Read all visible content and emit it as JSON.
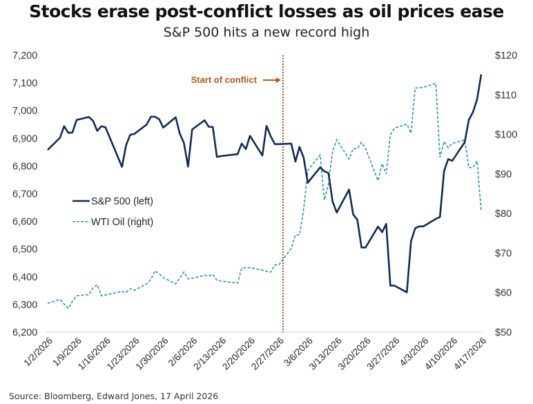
{
  "header": {
    "title": "Stocks erase post-conflict losses as oil prices ease",
    "subtitle": "S&P 500 hits a new record high"
  },
  "footer": {
    "source": "Source: Bloomberg, Edward Jones, 17 April 2026"
  },
  "colors": {
    "sp500": "#0f2a52",
    "oil": "#2a8fae",
    "conflict_line": "#a0522d",
    "annotation": "#b5541c"
  },
  "chart_data": {
    "type": "line",
    "title": "Stocks erase post-conflict losses as oil prices ease",
    "subtitle": "S&P 500 hits a new record high",
    "xlabel": "",
    "ylabel_left": "",
    "ylabel_right": "",
    "x_range": [
      "2026-01-02",
      "2026-04-17"
    ],
    "x_tick_labels": [
      "1/2/2026",
      "1/9/2026",
      "1/16/2026",
      "1/23/2026",
      "1/30/2026",
      "2/6/2026",
      "2/13/2026",
      "2/20/2026",
      "2/27/2026",
      "3/6/2026",
      "3/13/2026",
      "3/20/2026",
      "3/27/2026",
      "4/3/2026",
      "4/10/2026",
      "4/17/2026"
    ],
    "y_left": {
      "min": 6200,
      "max": 7200,
      "ticks": [
        "6,200",
        "6,300",
        "6,400",
        "6,500",
        "6,600",
        "6,700",
        "6,800",
        "6,900",
        "7,000",
        "7,100",
        "7,200"
      ],
      "tick_values": [
        6200,
        6300,
        6400,
        6500,
        6600,
        6700,
        6800,
        6900,
        7000,
        7100,
        7200
      ]
    },
    "y_right": {
      "min": 50,
      "max": 120,
      "ticks": [
        "$50",
        "$60",
        "$70",
        "$80",
        "$90",
        "$100",
        "$110",
        "$120"
      ],
      "tick_values": [
        50,
        60,
        70,
        80,
        90,
        100,
        110,
        120
      ]
    },
    "grid": false,
    "legend": {
      "placement": "middle-left",
      "entries": [
        {
          "label": "S&P 500 (left)",
          "style": "solid"
        },
        {
          "label": "WTI Oil (right)",
          "style": "dashed"
        }
      ]
    },
    "annotations": [
      {
        "text": "Start of conflict",
        "x": "2026-02-28",
        "style": "vertical dotted line with arrow"
      }
    ],
    "series": [
      {
        "name": "S&P 500 (left)",
        "axis": "left",
        "points": [
          [
            "2026-01-02",
            6858
          ],
          [
            "2026-01-05",
            6902
          ],
          [
            "2026-01-06",
            6944
          ],
          [
            "2026-01-07",
            6920
          ],
          [
            "2026-01-08",
            6921
          ],
          [
            "2026-01-09",
            6966
          ],
          [
            "2026-01-12",
            6977
          ],
          [
            "2026-01-13",
            6963
          ],
          [
            "2026-01-14",
            6927
          ],
          [
            "2026-01-15",
            6944
          ],
          [
            "2026-01-16",
            6940
          ],
          [
            "2026-01-20",
            6797
          ],
          [
            "2026-01-21",
            6875
          ],
          [
            "2026-01-22",
            6913
          ],
          [
            "2026-01-23",
            6916
          ],
          [
            "2026-01-26",
            6950
          ],
          [
            "2026-01-27",
            6978
          ],
          [
            "2026-01-28",
            6978
          ],
          [
            "2026-01-29",
            6969
          ],
          [
            "2026-01-30",
            6939
          ],
          [
            "2026-02-02",
            6976
          ],
          [
            "2026-02-03",
            6917
          ],
          [
            "2026-02-04",
            6883
          ],
          [
            "2026-02-05",
            6798
          ],
          [
            "2026-02-06",
            6932
          ],
          [
            "2026-02-09",
            6965
          ],
          [
            "2026-02-10",
            6942
          ],
          [
            "2026-02-11",
            6941
          ],
          [
            "2026-02-12",
            6833
          ],
          [
            "2026-02-13",
            6836
          ],
          [
            "2026-02-17",
            6843
          ],
          [
            "2026-02-18",
            6881
          ],
          [
            "2026-02-19",
            6861
          ],
          [
            "2026-02-20",
            6909
          ],
          [
            "2026-02-23",
            6838
          ],
          [
            "2026-02-24",
            6945
          ],
          [
            "2026-02-25",
            6908
          ],
          [
            "2026-02-26",
            6879
          ],
          [
            "2026-02-27",
            6879
          ],
          [
            "2026-03-02",
            6881
          ],
          [
            "2026-03-03",
            6816
          ],
          [
            "2026-03-04",
            6869
          ],
          [
            "2026-03-05",
            6830
          ],
          [
            "2026-03-06",
            6740
          ],
          [
            "2026-03-09",
            6795
          ],
          [
            "2026-03-10",
            6781
          ],
          [
            "2026-03-11",
            6775
          ],
          [
            "2026-03-12",
            6672
          ],
          [
            "2026-03-13",
            6632
          ],
          [
            "2026-03-16",
            6715
          ],
          [
            "2026-03-17",
            6625
          ],
          [
            "2026-03-18",
            6606
          ],
          [
            "2026-03-19",
            6506
          ],
          [
            "2026-03-20",
            6506
          ],
          [
            "2026-03-23",
            6581
          ],
          [
            "2026-03-24",
            6561
          ],
          [
            "2026-03-25",
            6591
          ],
          [
            "2026-03-26",
            6368
          ],
          [
            "2026-03-27",
            6368
          ],
          [
            "2026-03-30",
            6344
          ],
          [
            "2026-03-31",
            6528
          ],
          [
            "2026-04-01",
            6575
          ],
          [
            "2026-04-02",
            6582
          ],
          [
            "2026-04-03",
            6582
          ],
          [
            "2026-04-06",
            6609
          ],
          [
            "2026-04-07",
            6616
          ],
          [
            "2026-04-08",
            6782
          ],
          [
            "2026-04-09",
            6825
          ],
          [
            "2026-04-10",
            6819
          ],
          [
            "2026-04-13",
            6886
          ],
          [
            "2026-04-14",
            6967
          ],
          [
            "2026-04-15",
            6994
          ],
          [
            "2026-04-16",
            7041
          ],
          [
            "2026-04-17",
            7131
          ]
        ]
      },
      {
        "name": "WTI Oil (right)",
        "axis": "right",
        "points": [
          [
            "2026-01-02",
            57.3
          ],
          [
            "2026-01-05",
            58.3
          ],
          [
            "2026-01-06",
            57.1
          ],
          [
            "2026-01-07",
            56.0
          ],
          [
            "2026-01-08",
            57.8
          ],
          [
            "2026-01-09",
            59.2
          ],
          [
            "2026-01-12",
            59.5
          ],
          [
            "2026-01-13",
            61.2
          ],
          [
            "2026-01-14",
            62.0
          ],
          [
            "2026-01-15",
            59.2
          ],
          [
            "2026-01-16",
            59.4
          ],
          [
            "2026-01-20",
            60.3
          ],
          [
            "2026-01-21",
            60.0
          ],
          [
            "2026-01-22",
            61.0
          ],
          [
            "2026-01-23",
            60.6
          ],
          [
            "2026-01-26",
            62.2
          ],
          [
            "2026-01-27",
            63.3
          ],
          [
            "2026-01-28",
            65.5
          ],
          [
            "2026-01-29",
            64.8
          ],
          [
            "2026-01-30",
            63.8
          ],
          [
            "2026-02-02",
            62.2
          ],
          [
            "2026-02-03",
            63.7
          ],
          [
            "2026-02-04",
            65.2
          ],
          [
            "2026-02-05",
            63.5
          ],
          [
            "2026-02-06",
            63.6
          ],
          [
            "2026-02-09",
            64.4
          ],
          [
            "2026-02-10",
            64.2
          ],
          [
            "2026-02-11",
            64.6
          ],
          [
            "2026-02-12",
            63.1
          ],
          [
            "2026-02-13",
            62.9
          ],
          [
            "2026-02-17",
            62.4
          ],
          [
            "2026-02-18",
            66.2
          ],
          [
            "2026-02-19",
            66.3
          ],
          [
            "2026-02-20",
            66.3
          ],
          [
            "2026-02-23",
            65.7
          ],
          [
            "2026-02-24",
            65.4
          ],
          [
            "2026-02-25",
            65.2
          ],
          [
            "2026-02-26",
            67.0
          ],
          [
            "2026-02-27",
            67.0
          ],
          [
            "2026-03-02",
            71.2
          ],
          [
            "2026-03-03",
            74.6
          ],
          [
            "2026-03-04",
            74.6
          ],
          [
            "2026-03-05",
            81.0
          ],
          [
            "2026-03-06",
            90.9
          ],
          [
            "2026-03-09",
            94.8
          ],
          [
            "2026-03-10",
            83.4
          ],
          [
            "2026-03-11",
            87.3
          ],
          [
            "2026-03-12",
            95.7
          ],
          [
            "2026-03-13",
            98.6
          ],
          [
            "2026-03-16",
            93.8
          ],
          [
            "2026-03-17",
            96.4
          ],
          [
            "2026-03-18",
            96.4
          ],
          [
            "2026-03-19",
            98.0
          ],
          [
            "2026-03-20",
            96.4
          ],
          [
            "2026-03-23",
            88.3
          ],
          [
            "2026-03-24",
            92.6
          ],
          [
            "2026-03-25",
            90.0
          ],
          [
            "2026-03-26",
            99.9
          ],
          [
            "2026-03-27",
            101.6
          ],
          [
            "2026-03-30",
            102.6
          ],
          [
            "2026-03-31",
            100.3
          ],
          [
            "2026-04-01",
            111.7
          ],
          [
            "2026-04-02",
            111.8
          ],
          [
            "2026-04-03",
            111.9
          ],
          [
            "2026-04-06",
            112.9
          ],
          [
            "2026-04-07",
            94.2
          ],
          [
            "2026-04-08",
            98.2
          ],
          [
            "2026-04-09",
            96.6
          ],
          [
            "2026-04-10",
            97.7
          ],
          [
            "2026-04-13",
            98.6
          ],
          [
            "2026-04-14",
            91.6
          ],
          [
            "2026-04-15",
            91.6
          ],
          [
            "2026-04-16",
            93.3
          ],
          [
            "2026-04-17",
            80.6
          ]
        ]
      }
    ]
  }
}
